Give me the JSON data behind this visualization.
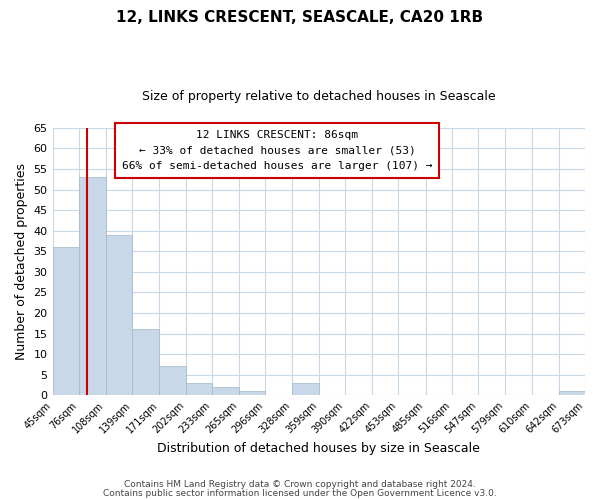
{
  "title": "12, LINKS CRESCENT, SEASCALE, CA20 1RB",
  "subtitle": "Size of property relative to detached houses in Seascale",
  "xlabel": "Distribution of detached houses by size in Seascale",
  "ylabel": "Number of detached properties",
  "bin_edges": [
    45,
    76,
    108,
    139,
    171,
    202,
    233,
    265,
    296,
    328,
    359,
    390,
    422,
    453,
    485,
    516,
    547,
    579,
    610,
    642,
    673
  ],
  "counts": [
    36,
    53,
    39,
    16,
    7,
    3,
    2,
    1,
    0,
    3,
    0,
    0,
    0,
    0,
    0,
    0,
    0,
    0,
    0,
    1
  ],
  "tick_labels": [
    "45sqm",
    "76sqm",
    "108sqm",
    "139sqm",
    "171sqm",
    "202sqm",
    "233sqm",
    "265sqm",
    "296sqm",
    "328sqm",
    "359sqm",
    "390sqm",
    "422sqm",
    "453sqm",
    "485sqm",
    "516sqm",
    "547sqm",
    "579sqm",
    "610sqm",
    "642sqm",
    "673sqm"
  ],
  "bar_color": "#c8d8e8",
  "bar_edge_color": "#a0b8cc",
  "vline_x": 86,
  "vline_color": "#cc0000",
  "ylim": [
    0,
    65
  ],
  "yticks": [
    0,
    5,
    10,
    15,
    20,
    25,
    30,
    35,
    40,
    45,
    50,
    55,
    60,
    65
  ],
  "annotation_title": "12 LINKS CRESCENT: 86sqm",
  "annotation_line1": "← 33% of detached houses are smaller (53)",
  "annotation_line2": "66% of semi-detached houses are larger (107) →",
  "annotation_box_color": "#ffffff",
  "annotation_box_edge": "#cc0000",
  "footer1": "Contains HM Land Registry data © Crown copyright and database right 2024.",
  "footer2": "Contains public sector information licensed under the Open Government Licence v3.0.",
  "background_color": "#ffffff",
  "grid_color": "#c8d8e8"
}
